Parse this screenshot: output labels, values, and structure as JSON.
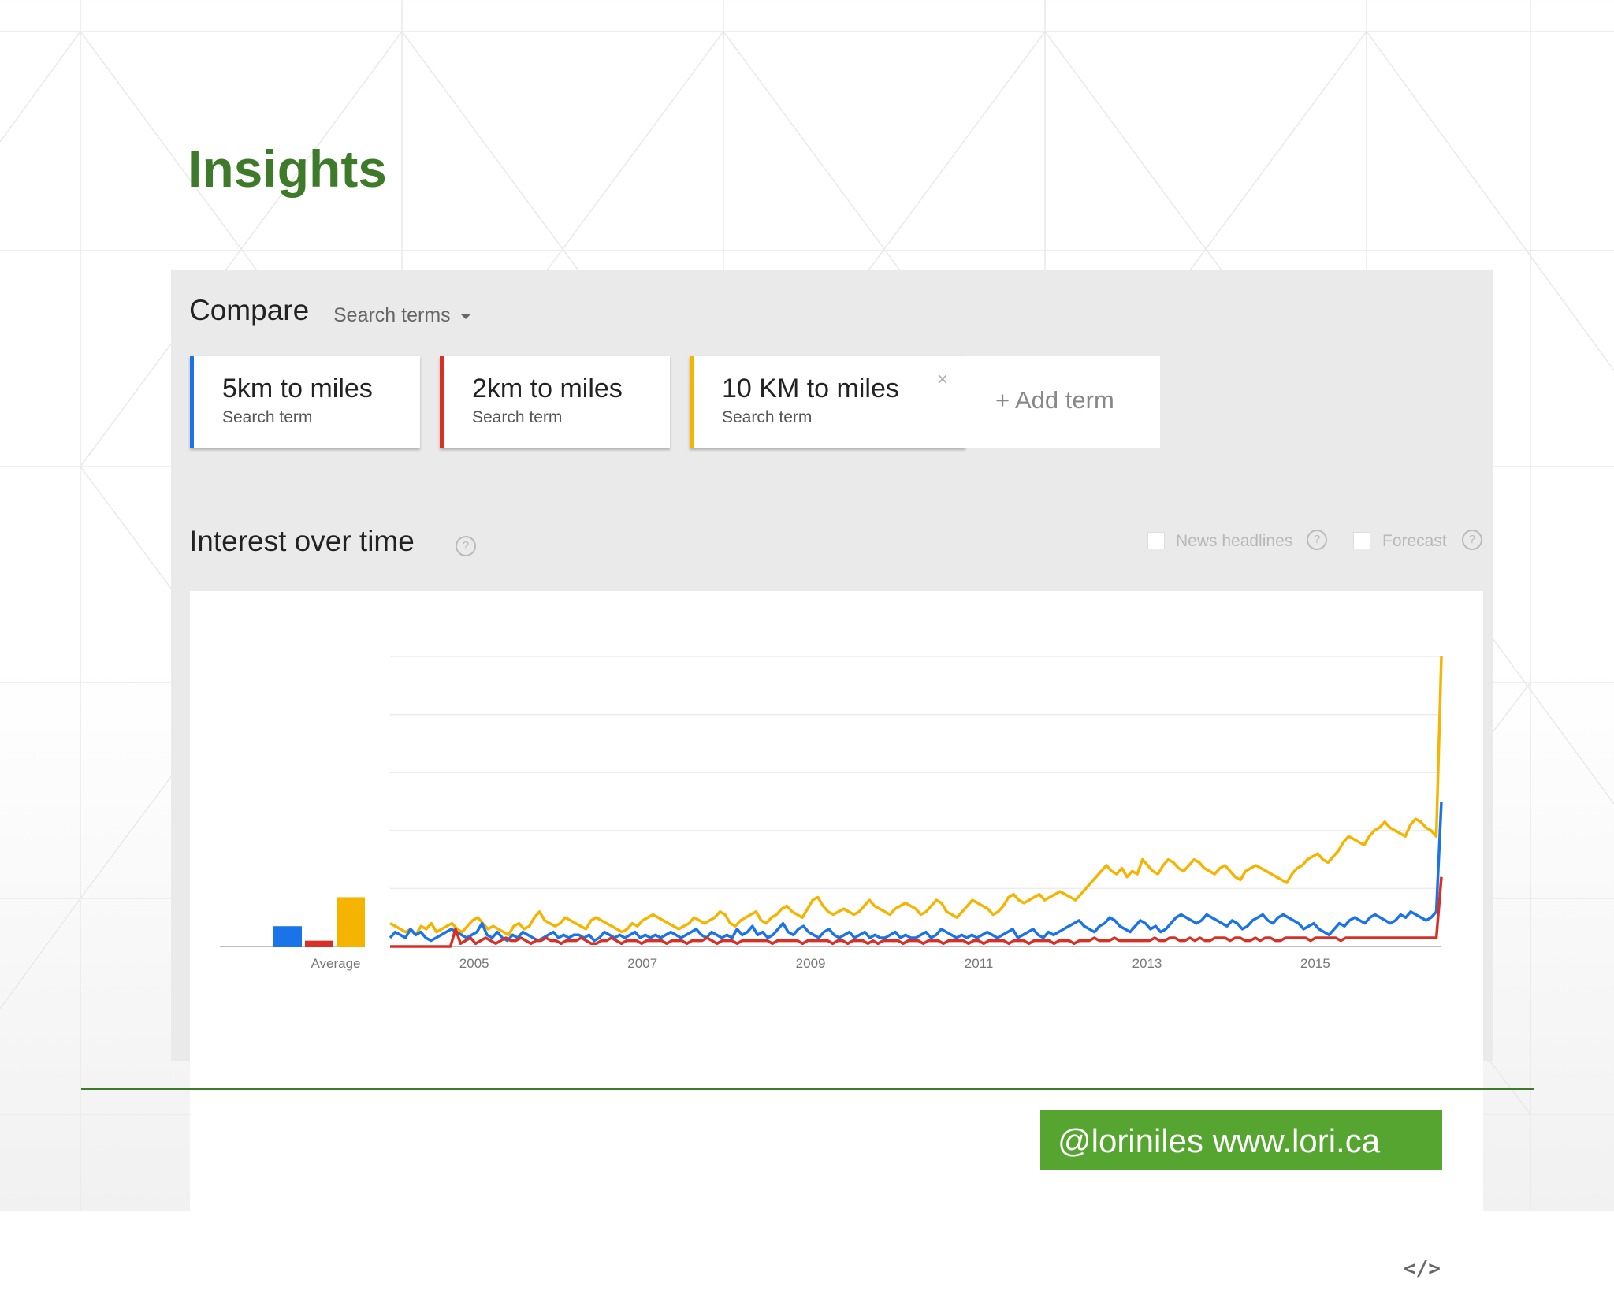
{
  "slide": {
    "title": "Insights",
    "footer": "@loriniles www.lori.ca",
    "accent_color": "#3d7a2a",
    "badge_color": "#55a530"
  },
  "compare": {
    "label": "Compare",
    "type_label": "Search terms",
    "terms": [
      {
        "name": "5km to miles",
        "sub": "Search term",
        "color": "#1a73e8"
      },
      {
        "name": "2km to miles",
        "sub": "Search term",
        "color": "#d93025"
      },
      {
        "name": "10 KM to miles",
        "sub": "Search term",
        "color": "#f4b400",
        "close": "×"
      }
    ],
    "add_term": "+ Add term"
  },
  "interest": {
    "title": "Interest over time",
    "help": "?",
    "options": [
      {
        "label": "News headlines",
        "help": "?"
      },
      {
        "label": "Forecast",
        "help": "?"
      }
    ],
    "embed_icon": "</>"
  },
  "chart_data": {
    "type": "line",
    "title": "",
    "xlabel": "",
    "ylabel": "",
    "ylim": [
      0,
      100
    ],
    "grid": true,
    "x_ticks": [
      "2005",
      "2007",
      "2009",
      "2011",
      "2013",
      "2015"
    ],
    "average_label": "Average",
    "average": [
      {
        "term": "5km to miles",
        "value": 7,
        "color": "#1a73e8"
      },
      {
        "term": "2km to miles",
        "value": 2,
        "color": "#d93025"
      },
      {
        "term": "10 KM to miles",
        "value": 17,
        "color": "#f4b400"
      }
    ],
    "x_start": 2004.0,
    "x_end": 2016.5,
    "series": [
      {
        "name": "5km to miles",
        "color": "#1a73e8",
        "values": [
          3,
          5,
          4,
          3,
          6,
          4,
          5,
          3,
          2,
          3,
          4,
          5,
          6,
          5,
          4,
          3,
          4,
          5,
          8,
          4,
          3,
          5,
          3,
          2,
          4,
          3,
          5,
          4,
          3,
          2,
          3,
          4,
          5,
          3,
          4,
          3,
          4,
          4,
          3,
          4,
          2,
          3,
          5,
          4,
          3,
          4,
          3,
          4,
          5,
          3,
          4,
          3,
          4,
          3,
          4,
          5,
          4,
          3,
          4,
          5,
          6,
          4,
          3,
          5,
          4,
          3,
          4,
          3,
          6,
          4,
          5,
          7,
          4,
          5,
          3,
          4,
          6,
          8,
          5,
          4,
          6,
          7,
          5,
          4,
          3,
          5,
          6,
          4,
          3,
          4,
          5,
          3,
          4,
          5,
          3,
          4,
          3,
          3,
          4,
          5,
          3,
          4,
          3,
          3,
          4,
          5,
          3,
          4,
          6,
          5,
          4,
          3,
          4,
          3,
          4,
          3,
          4,
          5,
          4,
          3,
          4,
          5,
          6,
          3,
          4,
          5,
          6,
          4,
          3,
          5,
          4,
          5,
          6,
          7,
          8,
          9,
          7,
          6,
          5,
          7,
          8,
          10,
          9,
          7,
          6,
          5,
          7,
          9,
          8,
          6,
          7,
          5,
          6,
          8,
          10,
          11,
          10,
          9,
          8,
          9,
          11,
          10,
          9,
          8,
          7,
          9,
          8,
          6,
          7,
          9,
          10,
          11,
          9,
          8,
          10,
          11,
          10,
          9,
          8,
          6,
          7,
          8,
          6,
          5,
          4,
          6,
          8,
          7,
          9,
          10,
          9,
          8,
          10,
          11,
          10,
          9,
          8,
          9,
          11,
          10,
          12,
          11,
          10,
          9,
          10,
          12,
          50
        ]
      },
      {
        "name": "2km to miles",
        "color": "#d93025",
        "values": [
          0,
          0,
          0,
          0,
          0,
          0,
          0,
          0,
          0,
          0,
          0,
          0,
          0,
          6,
          1,
          2,
          3,
          1,
          2,
          3,
          2,
          1,
          2,
          3,
          2,
          2,
          3,
          2,
          1,
          2,
          2,
          3,
          2,
          2,
          1,
          2,
          2,
          2,
          3,
          2,
          1,
          1,
          2,
          2,
          3,
          2,
          1,
          2,
          2,
          2,
          1,
          2,
          2,
          2,
          2,
          1,
          2,
          2,
          2,
          1,
          2,
          2,
          2,
          3,
          2,
          1,
          2,
          2,
          2,
          1,
          2,
          2,
          2,
          2,
          2,
          2,
          1,
          2,
          2,
          2,
          2,
          2,
          1,
          2,
          2,
          2,
          2,
          2,
          1,
          2,
          2,
          1,
          2,
          2,
          2,
          1,
          2,
          1,
          2,
          2,
          2,
          2,
          1,
          2,
          2,
          2,
          1,
          2,
          2,
          2,
          1,
          2,
          2,
          2,
          2,
          1,
          2,
          2,
          1,
          2,
          2,
          2,
          2,
          1,
          2,
          2,
          2,
          1,
          2,
          2,
          2,
          2,
          1,
          2,
          2,
          2,
          1,
          2,
          2,
          2,
          3,
          2,
          2,
          2,
          3,
          2,
          2,
          2,
          2,
          2,
          2,
          2,
          3,
          2,
          2,
          3,
          3,
          2,
          2,
          3,
          2,
          3,
          2,
          2,
          3,
          3,
          3,
          2,
          3,
          3,
          2,
          2,
          3,
          2,
          3,
          3,
          2,
          2,
          3,
          3,
          3,
          3,
          3,
          2,
          3,
          3,
          3,
          3,
          3,
          2,
          3,
          3,
          3,
          3,
          3,
          3,
          3,
          3,
          3,
          3,
          3,
          3,
          3,
          3,
          3,
          3,
          3,
          3,
          3,
          24
        ]
      },
      {
        "name": "10 KM to miles",
        "color": "#f4b400",
        "values": [
          8,
          7,
          6,
          5,
          6,
          4,
          7,
          6,
          8,
          5,
          6,
          7,
          8,
          6,
          5,
          7,
          9,
          10,
          8,
          6,
          7,
          6,
          5,
          4,
          7,
          8,
          6,
          7,
          10,
          12,
          9,
          8,
          7,
          8,
          10,
          9,
          8,
          7,
          6,
          9,
          10,
          9,
          8,
          7,
          6,
          5,
          6,
          8,
          7,
          9,
          10,
          11,
          10,
          9,
          8,
          7,
          6,
          7,
          8,
          10,
          9,
          8,
          9,
          10,
          12,
          11,
          8,
          7,
          9,
          10,
          11,
          12,
          9,
          8,
          10,
          11,
          13,
          14,
          12,
          11,
          10,
          13,
          16,
          17,
          14,
          12,
          11,
          12,
          13,
          12,
          11,
          12,
          14,
          16,
          14,
          13,
          12,
          11,
          13,
          14,
          15,
          14,
          13,
          11,
          12,
          14,
          16,
          15,
          12,
          11,
          10,
          12,
          14,
          16,
          15,
          14,
          13,
          11,
          12,
          14,
          17,
          18,
          16,
          15,
          16,
          17,
          18,
          16,
          17,
          18,
          19,
          18,
          17,
          16,
          18,
          20,
          22,
          24,
          26,
          28,
          26,
          25,
          27,
          24,
          26,
          25,
          30,
          28,
          26,
          25,
          28,
          30,
          29,
          27,
          26,
          28,
          30,
          29,
          27,
          26,
          25,
          27,
          28,
          26,
          24,
          23,
          26,
          27,
          28,
          27,
          26,
          25,
          24,
          23,
          22,
          25,
          27,
          28,
          30,
          31,
          32,
          30,
          29,
          31,
          33,
          36,
          38,
          37,
          36,
          35,
          38,
          40,
          41,
          43,
          41,
          40,
          39,
          38,
          42,
          44,
          43,
          41,
          40,
          38,
          100
        ]
      }
    ]
  }
}
